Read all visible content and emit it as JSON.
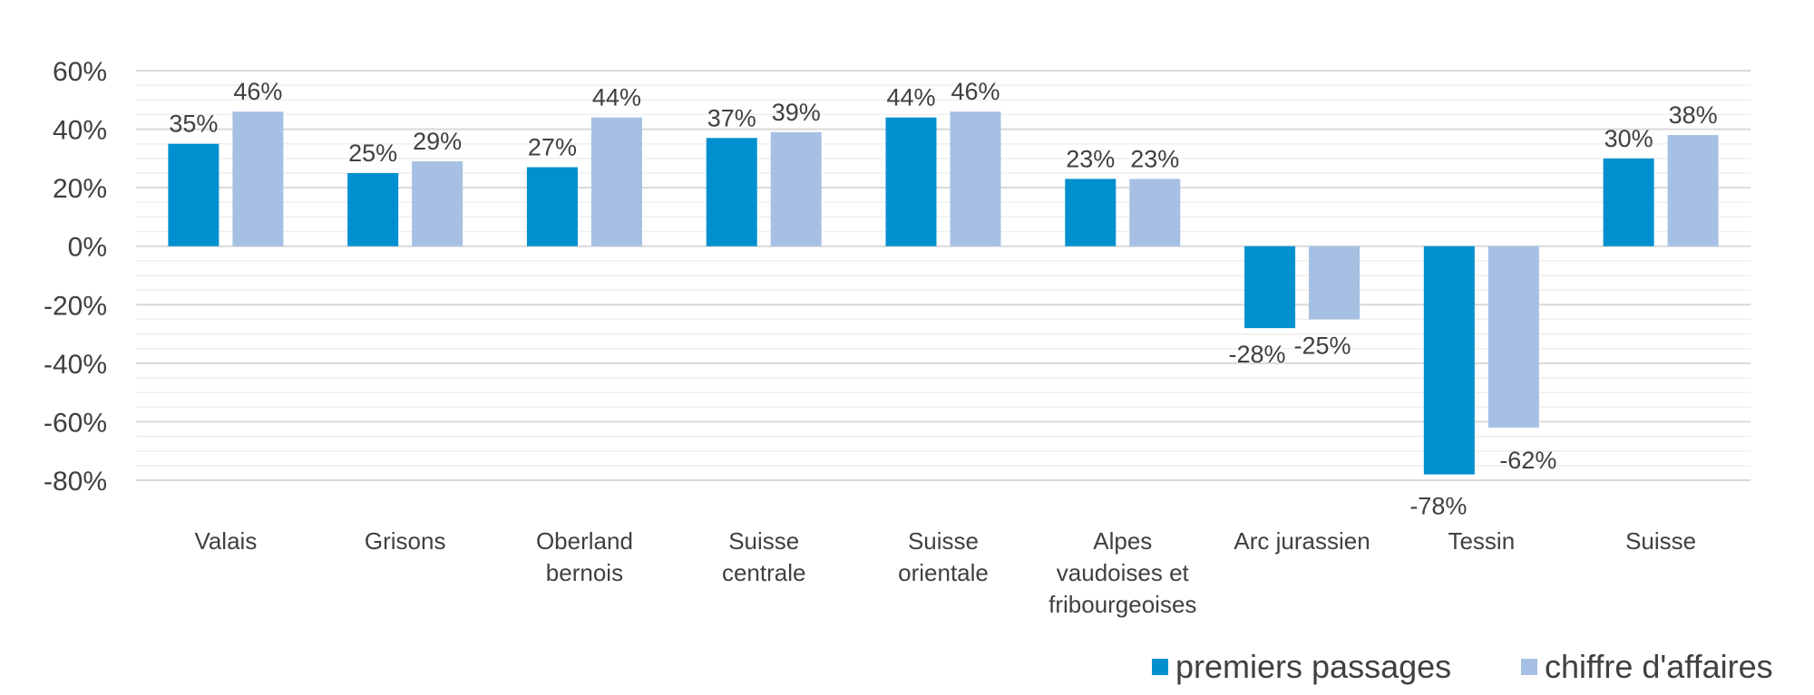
{
  "chart_data": {
    "type": "bar",
    "categories": [
      [
        "Valais"
      ],
      [
        "Grisons"
      ],
      [
        "Oberland",
        "bernois"
      ],
      [
        "Suisse",
        "centrale"
      ],
      [
        "Suisse",
        "orientale"
      ],
      [
        "Alpes",
        "vaudoises et",
        "fribourgeoises"
      ],
      [
        "Arc jurassien"
      ],
      [
        "Tessin"
      ],
      [
        "Suisse"
      ]
    ],
    "series": [
      {
        "name": "premiers passages",
        "color": "#0090D0",
        "values": [
          35,
          25,
          27,
          37,
          44,
          23,
          -28,
          -78,
          30
        ],
        "labels": [
          "35%",
          "25%",
          "27%",
          "37%",
          "44%",
          "23%",
          "-28%",
          "-78%",
          "30%"
        ]
      },
      {
        "name": "chiffre d'affaires",
        "color": "#A5C0E3",
        "values": [
          46,
          29,
          44,
          39,
          46,
          23,
          -25,
          -62,
          38
        ],
        "labels": [
          "46%",
          "29%",
          "44%",
          "39%",
          "46%",
          "23%",
          "-25%",
          "-62%",
          "38%"
        ]
      }
    ],
    "ylim": [
      -80,
      60
    ],
    "yticks": [
      60,
      40,
      20,
      0,
      -20,
      -40,
      -60,
      -80
    ],
    "ytick_labels": [
      "60%",
      "40%",
      "20%",
      "0%",
      "-20%",
      "-40%",
      "-60%",
      "-80%"
    ],
    "grid": true,
    "legend_position": "bottom-right",
    "title": "",
    "xlabel": "",
    "ylabel": ""
  }
}
